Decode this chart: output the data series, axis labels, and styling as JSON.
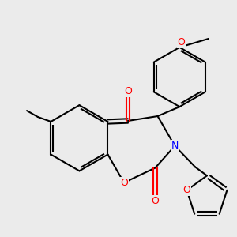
{
  "bg_color": "#ebebeb",
  "bond_color": "#000000",
  "bond_width": 1.5,
  "atom_colors": {
    "O": "#ff0000",
    "N": "#0000ff",
    "C": "#000000"
  },
  "font_size": 9,
  "fig_size": [
    3.0,
    3.0
  ],
  "dpi": 100
}
